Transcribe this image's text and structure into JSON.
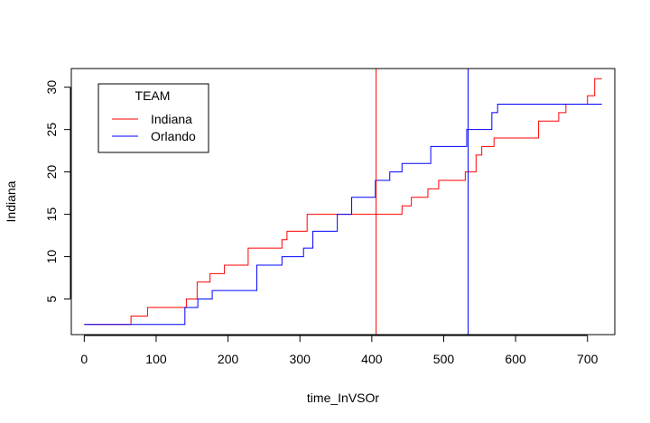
{
  "chart_data": {
    "type": "line",
    "title": "",
    "xlabel": "time_InVSOr",
    "ylabel": "Indiana",
    "xlim": [
      -18,
      738
    ],
    "ylim": [
      0.8,
      32.2
    ],
    "xticks": [
      0,
      100,
      200,
      300,
      400,
      500,
      600,
      700
    ],
    "yticks": [
      5,
      10,
      15,
      20,
      25,
      30
    ],
    "legend": {
      "title": "TEAM",
      "position": "top-left"
    },
    "series": [
      {
        "name": "Indiana",
        "color": "#ff0000",
        "step": true,
        "x": [
          0,
          65,
          88,
          142,
          157,
          175,
          195,
          215,
          228,
          275,
          282,
          295,
          310,
          335,
          385,
          420,
          442,
          455,
          478,
          493,
          520,
          530,
          545,
          553,
          570,
          575,
          600,
          610,
          632,
          650,
          660,
          670,
          688,
          700,
          710,
          720
        ],
        "y": [
          2,
          3,
          4,
          5,
          7,
          8,
          9,
          9,
          11,
          12,
          13,
          13,
          15,
          15,
          15,
          15,
          16,
          17,
          18,
          19,
          19,
          20,
          22,
          23,
          24,
          24,
          24,
          24,
          26,
          26,
          27,
          28,
          28,
          29,
          31,
          31
        ]
      },
      {
        "name": "Orlando",
        "color": "#0000ff",
        "step": true,
        "x": [
          0,
          140,
          158,
          178,
          240,
          275,
          305,
          318,
          352,
          372,
          405,
          425,
          442,
          455,
          482,
          508,
          532,
          553,
          567,
          575,
          640,
          720
        ],
        "y": [
          2,
          4,
          5,
          6,
          9,
          10,
          11,
          13,
          15,
          17,
          19,
          20,
          21,
          21,
          23,
          23,
          25,
          25,
          27,
          28,
          28,
          28
        ]
      }
    ],
    "vlines": [
      {
        "x": 406,
        "color": "#ff0000"
      },
      {
        "x": 534,
        "color": "#0000ff"
      }
    ]
  }
}
